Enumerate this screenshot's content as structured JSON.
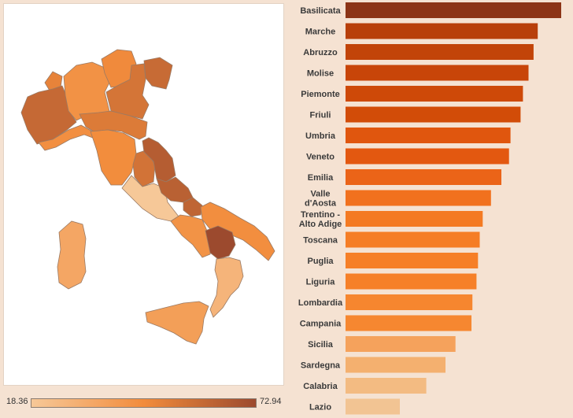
{
  "legend": {
    "min_label": "18.36",
    "max_label": "72.94",
    "min": 18.36,
    "max": 72.94,
    "color_low": "#f6c898",
    "color_mid": "#f28c3c",
    "color_high": "#9c4a2e"
  },
  "chart_data": {
    "type": "bar",
    "orientation": "horizontal",
    "sorted": "descending",
    "categories": [
      "Basilicata",
      "Marche",
      "Abruzzo",
      "Molise",
      "Piemonte",
      "Friuli",
      "Umbria",
      "Veneto",
      "Emilia",
      "Valle d'Aosta",
      "Trentino - Alto Adige",
      "Toscana",
      "Puglia",
      "Liguria",
      "Lombardia",
      "Campania",
      "Sicilia",
      "Sardegna",
      "Calabria",
      "Lazio"
    ],
    "values": [
      72.94,
      65.0,
      63.6,
      61.9,
      60.0,
      59.2,
      55.8,
      55.3,
      52.7,
      49.2,
      46.4,
      45.4,
      44.8,
      44.3,
      42.9,
      42.6,
      37.2,
      33.8,
      27.3,
      18.36
    ],
    "xlim": [
      0,
      72.94
    ],
    "colors": [
      "#8c3416",
      "#b83f0a",
      "#c24409",
      "#c84509",
      "#ce4908",
      "#d24c08",
      "#e0560e",
      "#e35810",
      "#eb6418",
      "#f1711e",
      "#f47a22",
      "#f57d25",
      "#f67f27",
      "#f68028",
      "#f6862f",
      "#f68730",
      "#f5a25c",
      "#f4b06f",
      "#f3bb82",
      "#f2c493"
    ],
    "grid": false,
    "legend": "colour scale bottom-left"
  },
  "map": {
    "regions": [
      {
        "name": "Valle d'Aosta",
        "value": 49.2
      },
      {
        "name": "Piemonte",
        "value": 60.0
      },
      {
        "name": "Liguria",
        "value": 44.3
      },
      {
        "name": "Lombardia",
        "value": 42.9
      },
      {
        "name": "Trentino - Alto Adige",
        "value": 46.4
      },
      {
        "name": "Veneto",
        "value": 55.3
      },
      {
        "name": "Friuli",
        "value": 59.2
      },
      {
        "name": "Emilia",
        "value": 52.7
      },
      {
        "name": "Toscana",
        "value": 45.4
      },
      {
        "name": "Umbria",
        "value": 55.8
      },
      {
        "name": "Marche",
        "value": 65.0
      },
      {
        "name": "Lazio",
        "value": 18.36
      },
      {
        "name": "Abruzzo",
        "value": 63.6
      },
      {
        "name": "Molise",
        "value": 61.9
      },
      {
        "name": "Campania",
        "value": 42.6
      },
      {
        "name": "Puglia",
        "value": 44.8
      },
      {
        "name": "Basilicata",
        "value": 72.94
      },
      {
        "name": "Calabria",
        "value": 27.3
      },
      {
        "name": "Sicilia",
        "value": 37.2
      },
      {
        "name": "Sardegna",
        "value": 33.8
      }
    ]
  }
}
